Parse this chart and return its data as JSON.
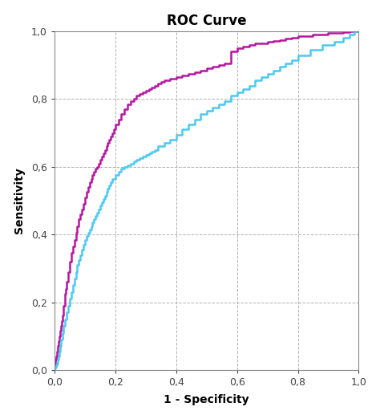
{
  "title": "ROC Curve",
  "xlabel": "1 - Specificity",
  "ylabel": "Sensitivity",
  "xlim": [
    0.0,
    1.0
  ],
  "ylim": [
    0.0,
    1.0
  ],
  "xticks": [
    0.0,
    0.2,
    0.4,
    0.6,
    0.8,
    1.0
  ],
  "yticks": [
    0.0,
    0.2,
    0.4,
    0.6,
    0.8,
    1.0
  ],
  "tick_labels": [
    "0,0",
    "0,2",
    "0,4",
    "0,6",
    "0,8",
    "1,0"
  ],
  "color_purple": "#b5179e",
  "color_cyan": "#4cc9f0",
  "grid_color": "#aaaaaa",
  "background_color": "#ffffff",
  "title_fontsize": 12,
  "axis_label_fontsize": 10,
  "tick_fontsize": 9,
  "line_width": 1.8,
  "purple_x": [
    0.0,
    0.003,
    0.005,
    0.007,
    0.01,
    0.013,
    0.015,
    0.018,
    0.02,
    0.023,
    0.025,
    0.028,
    0.03,
    0.033,
    0.035,
    0.038,
    0.04,
    0.045,
    0.05,
    0.055,
    0.06,
    0.065,
    0.07,
    0.075,
    0.08,
    0.085,
    0.09,
    0.095,
    0.1,
    0.105,
    0.11,
    0.115,
    0.12,
    0.125,
    0.13,
    0.135,
    0.14,
    0.145,
    0.15,
    0.155,
    0.16,
    0.165,
    0.17,
    0.175,
    0.18,
    0.185,
    0.19,
    0.195,
    0.2,
    0.21,
    0.22,
    0.23,
    0.24,
    0.25,
    0.26,
    0.27,
    0.28,
    0.29,
    0.3,
    0.31,
    0.32,
    0.33,
    0.34,
    0.35,
    0.36,
    0.38,
    0.4,
    0.42,
    0.44,
    0.46,
    0.48,
    0.5,
    0.52,
    0.54,
    0.56,
    0.58,
    0.6,
    0.62,
    0.64,
    0.66,
    0.68,
    0.7,
    0.72,
    0.74,
    0.76,
    0.78,
    0.8,
    0.85,
    0.9,
    0.95,
    0.97,
    0.98,
    1.0
  ],
  "purple_y": [
    0.01,
    0.02,
    0.03,
    0.04,
    0.055,
    0.07,
    0.085,
    0.1,
    0.115,
    0.13,
    0.145,
    0.16,
    0.175,
    0.19,
    0.21,
    0.225,
    0.24,
    0.26,
    0.29,
    0.32,
    0.345,
    0.365,
    0.385,
    0.405,
    0.425,
    0.445,
    0.46,
    0.475,
    0.49,
    0.51,
    0.525,
    0.54,
    0.555,
    0.565,
    0.575,
    0.585,
    0.595,
    0.6,
    0.61,
    0.62,
    0.63,
    0.64,
    0.65,
    0.66,
    0.67,
    0.68,
    0.69,
    0.7,
    0.71,
    0.725,
    0.74,
    0.755,
    0.77,
    0.785,
    0.795,
    0.8,
    0.81,
    0.815,
    0.82,
    0.825,
    0.83,
    0.835,
    0.84,
    0.845,
    0.85,
    0.855,
    0.86,
    0.865,
    0.87,
    0.875,
    0.88,
    0.885,
    0.89,
    0.895,
    0.9,
    0.905,
    0.94,
    0.95,
    0.955,
    0.96,
    0.965,
    0.965,
    0.97,
    0.972,
    0.975,
    0.978,
    0.98,
    0.985,
    0.99,
    0.995,
    0.997,
    0.999,
    1.0
  ],
  "cyan_x": [
    0.0,
    0.003,
    0.005,
    0.008,
    0.01,
    0.013,
    0.015,
    0.018,
    0.02,
    0.025,
    0.03,
    0.035,
    0.04,
    0.045,
    0.05,
    0.055,
    0.06,
    0.065,
    0.07,
    0.075,
    0.08,
    0.085,
    0.09,
    0.095,
    0.1,
    0.105,
    0.11,
    0.115,
    0.12,
    0.125,
    0.13,
    0.135,
    0.14,
    0.145,
    0.15,
    0.155,
    0.16,
    0.165,
    0.17,
    0.175,
    0.18,
    0.185,
    0.19,
    0.2,
    0.21,
    0.22,
    0.23,
    0.24,
    0.25,
    0.26,
    0.27,
    0.28,
    0.29,
    0.3,
    0.31,
    0.32,
    0.33,
    0.34,
    0.36,
    0.38,
    0.4,
    0.42,
    0.44,
    0.46,
    0.48,
    0.5,
    0.52,
    0.54,
    0.56,
    0.58,
    0.6,
    0.62,
    0.64,
    0.66,
    0.68,
    0.7,
    0.72,
    0.74,
    0.76,
    0.78,
    0.8,
    0.84,
    0.88,
    0.92,
    0.95,
    0.97,
    0.985,
    1.0
  ],
  "cyan_y": [
    0.0,
    0.005,
    0.01,
    0.015,
    0.02,
    0.03,
    0.04,
    0.055,
    0.07,
    0.09,
    0.11,
    0.13,
    0.15,
    0.17,
    0.19,
    0.21,
    0.23,
    0.25,
    0.27,
    0.29,
    0.31,
    0.325,
    0.34,
    0.355,
    0.37,
    0.385,
    0.395,
    0.405,
    0.415,
    0.425,
    0.435,
    0.445,
    0.455,
    0.465,
    0.475,
    0.485,
    0.495,
    0.505,
    0.515,
    0.525,
    0.535,
    0.545,
    0.555,
    0.565,
    0.575,
    0.585,
    0.595,
    0.6,
    0.605,
    0.61,
    0.615,
    0.62,
    0.625,
    0.63,
    0.635,
    0.64,
    0.645,
    0.65,
    0.66,
    0.67,
    0.68,
    0.695,
    0.71,
    0.725,
    0.74,
    0.755,
    0.765,
    0.775,
    0.785,
    0.795,
    0.81,
    0.82,
    0.83,
    0.84,
    0.855,
    0.865,
    0.875,
    0.885,
    0.895,
    0.905,
    0.915,
    0.93,
    0.945,
    0.96,
    0.97,
    0.98,
    0.99,
    1.0
  ]
}
